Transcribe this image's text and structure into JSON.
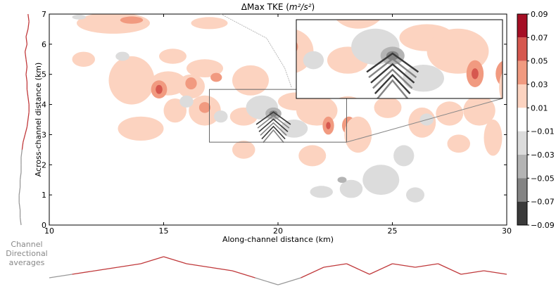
{
  "chart_data": {
    "type": "heatmap",
    "title": "ΔMax TKE",
    "title_units": "m²/s²",
    "xlabel": "Along-channel distance (km)",
    "ylabel": "Across-channel distance (km)",
    "xlim": [
      10,
      30
    ],
    "ylim": [
      0,
      7
    ],
    "x_ticks": [
      "10",
      "15",
      "20",
      "25",
      "30"
    ],
    "y_ticks": [
      "0",
      "1",
      "2",
      "3",
      "4",
      "5",
      "6",
      "7"
    ],
    "x_tick_values": [
      10,
      15,
      20,
      25,
      30
    ],
    "y_tick_values": [
      0,
      1,
      2,
      3,
      4,
      5,
      6,
      7
    ],
    "inset_region": {
      "x": [
        17,
        23
      ],
      "y": [
        2.75,
        4.5
      ]
    },
    "inset_placement": "upper-right",
    "colorbar": {
      "levels": [
        "0.09",
        "0.07",
        "0.05",
        "0.03",
        "0.01",
        "−0.01",
        "−0.03",
        "−0.05",
        "−0.07",
        "−0.09"
      ],
      "colors": [
        "#a50f25",
        "#d6584f",
        "#f19a80",
        "#fcd3c0",
        "#ffffff",
        "#dcdcdc",
        "#b4b4b4",
        "#848484",
        "#3a3a3a"
      ]
    },
    "blobs": [
      {
        "x": 12.8,
        "y": 6.7,
        "rx": 1.6,
        "ry": 0.35,
        "level": 1
      },
      {
        "x": 13.6,
        "y": 6.8,
        "rx": 0.5,
        "ry": 0.12,
        "level": 2
      },
      {
        "x": 17.0,
        "y": 6.7,
        "rx": 0.8,
        "ry": 0.2,
        "level": 1
      },
      {
        "x": 11.5,
        "y": 5.5,
        "rx": 0.5,
        "ry": 0.25,
        "level": 1
      },
      {
        "x": 13.6,
        "y": 4.8,
        "rx": 1.0,
        "ry": 0.8,
        "level": 1
      },
      {
        "x": 15.2,
        "y": 4.7,
        "rx": 0.8,
        "ry": 0.4,
        "level": 1
      },
      {
        "x": 14.8,
        "y": 4.5,
        "rx": 0.35,
        "ry": 0.3,
        "level": 2
      },
      {
        "x": 14.8,
        "y": 4.5,
        "rx": 0.15,
        "ry": 0.15,
        "level": 3
      },
      {
        "x": 16.2,
        "y": 4.6,
        "rx": 0.6,
        "ry": 0.4,
        "level": 1
      },
      {
        "x": 16.2,
        "y": 4.7,
        "rx": 0.25,
        "ry": 0.2,
        "level": 2
      },
      {
        "x": 16.8,
        "y": 3.8,
        "rx": 0.7,
        "ry": 0.5,
        "level": 1
      },
      {
        "x": 16.8,
        "y": 3.9,
        "rx": 0.25,
        "ry": 0.18,
        "level": 2
      },
      {
        "x": 15.5,
        "y": 3.8,
        "rx": 0.5,
        "ry": 0.4,
        "level": 1
      },
      {
        "x": 14.0,
        "y": 3.2,
        "rx": 1.0,
        "ry": 0.4,
        "level": 1
      },
      {
        "x": 15.4,
        "y": 5.6,
        "rx": 0.6,
        "ry": 0.25,
        "level": 1
      },
      {
        "x": 16.8,
        "y": 5.2,
        "rx": 0.8,
        "ry": 0.3,
        "level": 1
      },
      {
        "x": 17.3,
        "y": 4.9,
        "rx": 0.25,
        "ry": 0.15,
        "level": 2
      },
      {
        "x": 18.8,
        "y": 4.8,
        "rx": 0.8,
        "ry": 0.5,
        "level": 1
      },
      {
        "x": 18.5,
        "y": 3.6,
        "rx": 0.6,
        "ry": 0.3,
        "level": 1
      },
      {
        "x": 20.8,
        "y": 4.1,
        "rx": 0.8,
        "ry": 0.3,
        "level": 1
      },
      {
        "x": 21.7,
        "y": 3.8,
        "rx": 0.9,
        "ry": 0.5,
        "level": 1
      },
      {
        "x": 22.2,
        "y": 3.3,
        "rx": 0.25,
        "ry": 0.3,
        "level": 2
      },
      {
        "x": 22.2,
        "y": 3.3,
        "rx": 0.1,
        "ry": 0.12,
        "level": 3
      },
      {
        "x": 23.1,
        "y": 3.3,
        "rx": 0.3,
        "ry": 0.3,
        "level": 2
      },
      {
        "x": 23.5,
        "y": 3.0,
        "rx": 0.6,
        "ry": 0.6,
        "level": 1
      },
      {
        "x": 24.8,
        "y": 3.9,
        "rx": 0.6,
        "ry": 0.35,
        "level": 1
      },
      {
        "x": 26.3,
        "y": 3.4,
        "rx": 0.6,
        "ry": 0.5,
        "level": 1
      },
      {
        "x": 27.5,
        "y": 3.7,
        "rx": 0.6,
        "ry": 0.4,
        "level": 1
      },
      {
        "x": 28.8,
        "y": 3.8,
        "rx": 0.7,
        "ry": 0.5,
        "level": 1
      },
      {
        "x": 29.4,
        "y": 2.9,
        "rx": 0.4,
        "ry": 0.6,
        "level": 1
      },
      {
        "x": 25.5,
        "y": 4.8,
        "rx": 0.5,
        "ry": 0.3,
        "level": 1
      },
      {
        "x": 21.5,
        "y": 2.3,
        "rx": 0.6,
        "ry": 0.35,
        "level": 1
      },
      {
        "x": 18.5,
        "y": 2.5,
        "rx": 0.5,
        "ry": 0.3,
        "level": 1
      },
      {
        "x": 27.9,
        "y": 2.7,
        "rx": 0.5,
        "ry": 0.3,
        "level": 1
      },
      {
        "x": 17.5,
        "y": 3.6,
        "rx": 0.3,
        "ry": 0.2,
        "level": -1
      },
      {
        "x": 19.3,
        "y": 3.9,
        "rx": 0.7,
        "ry": 0.4,
        "level": -1
      },
      {
        "x": 19.8,
        "y": 3.7,
        "rx": 0.35,
        "ry": 0.2,
        "level": -2
      },
      {
        "x": 19.8,
        "y": 3.7,
        "rx": 0.18,
        "ry": 0.1,
        "level": -3
      },
      {
        "x": 20.7,
        "y": 3.2,
        "rx": 0.6,
        "ry": 0.3,
        "level": -1
      },
      {
        "x": 16.0,
        "y": 4.1,
        "rx": 0.3,
        "ry": 0.2,
        "level": -1
      },
      {
        "x": 13.2,
        "y": 5.6,
        "rx": 0.3,
        "ry": 0.15,
        "level": -1
      },
      {
        "x": 11.3,
        "y": 6.9,
        "rx": 0.3,
        "ry": 0.08,
        "level": -1
      },
      {
        "x": 24.5,
        "y": 1.5,
        "rx": 0.8,
        "ry": 0.5,
        "level": -1
      },
      {
        "x": 23.2,
        "y": 1.2,
        "rx": 0.5,
        "ry": 0.3,
        "level": -1
      },
      {
        "x": 25.5,
        "y": 2.3,
        "rx": 0.45,
        "ry": 0.35,
        "level": -1
      },
      {
        "x": 26.0,
        "y": 1.0,
        "rx": 0.4,
        "ry": 0.25,
        "level": -1
      },
      {
        "x": 21.9,
        "y": 1.1,
        "rx": 0.5,
        "ry": 0.2,
        "level": -1
      },
      {
        "x": 22.8,
        "y": 1.5,
        "rx": 0.2,
        "ry": 0.1,
        "level": -2
      },
      {
        "x": 27.5,
        "y": 6.2,
        "rx": 0.5,
        "ry": 0.25,
        "level": -1
      },
      {
        "x": 25.2,
        "y": 5.3,
        "rx": 0.4,
        "ry": 0.2,
        "level": -1
      },
      {
        "x": 26.5,
        "y": 3.5,
        "rx": 0.3,
        "ry": 0.2,
        "level": -1
      }
    ],
    "chevron": {
      "x": 19.8,
      "y": 3.75,
      "arms": 6,
      "spacing": 0.12,
      "span": 0.75
    },
    "across_channel_average": {
      "y": [
        0.0,
        0.25,
        0.5,
        0.75,
        1.0,
        1.25,
        1.5,
        1.75,
        2.0,
        2.25,
        2.5,
        2.75,
        3.0,
        3.25,
        3.5,
        3.75,
        4.0,
        4.25,
        4.5,
        4.75,
        5.0,
        5.25,
        5.5,
        5.75,
        6.0,
        6.25,
        6.5,
        6.75,
        7.0
      ],
      "value": [
        0.0,
        -0.001,
        -0.001,
        -0.002,
        -0.002,
        -0.001,
        -0.001,
        0.0,
        0.0,
        0.0,
        0.001,
        0.002,
        0.004,
        0.006,
        0.007,
        0.008,
        0.008,
        0.007,
        0.006,
        0.006,
        0.005,
        0.006,
        0.005,
        0.004,
        0.006,
        0.005,
        0.007,
        0.008,
        0.007
      ]
    },
    "along_channel_average": {
      "x": [
        10,
        11,
        12,
        13,
        14,
        15,
        16,
        17,
        18,
        19,
        20,
        21,
        22,
        23,
        24,
        25,
        26,
        27,
        28,
        29,
        30
      ],
      "value": [
        0.0,
        0.001,
        0.002,
        0.003,
        0.004,
        0.006,
        0.004,
        0.003,
        0.002,
        0.0,
        -0.002,
        0.0,
        0.003,
        0.004,
        0.001,
        0.004,
        0.003,
        0.004,
        0.001,
        0.002,
        0.001
      ]
    }
  },
  "caption": {
    "line1": "Channel",
    "line2": "Directional",
    "line3": "averages"
  }
}
